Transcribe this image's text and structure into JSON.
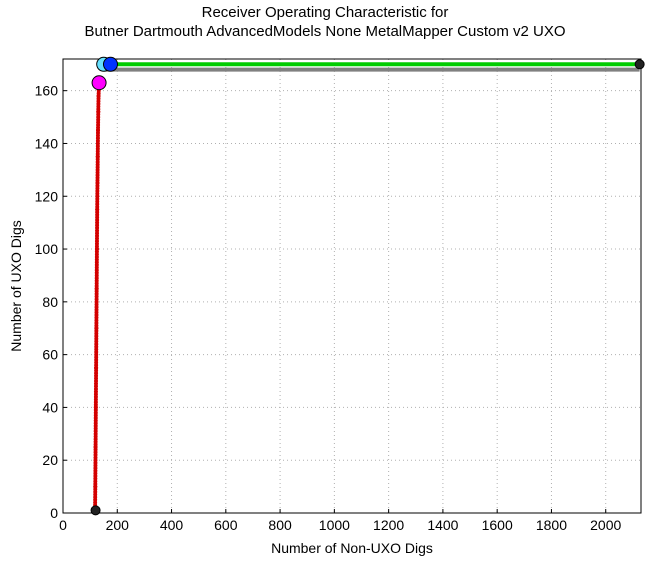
{
  "chart_data": {
    "type": "line",
    "title_lines": [
      "Receiver Operating Characteristic for",
      "Butner Dartmouth AdvancedModels None MetalMapper Custom v2 UXO"
    ],
    "xlabel": "Number of Non-UXO Digs",
    "ylabel": "Number of UXO Digs",
    "xlim": [
      0,
      2130
    ],
    "ylim": [
      0,
      172
    ],
    "xticks": [
      0,
      200,
      400,
      600,
      800,
      1000,
      1200,
      1400,
      1600,
      1800,
      2000
    ],
    "yticks": [
      0,
      20,
      40,
      60,
      80,
      100,
      120,
      140,
      160
    ],
    "grid": true,
    "series": [
      {
        "color": "#d40000",
        "marker": "dot",
        "points": [
          [
            118,
            0
          ],
          [
            119,
            10
          ],
          [
            120,
            25
          ],
          [
            121,
            40
          ],
          [
            122,
            55
          ],
          [
            123,
            70
          ],
          [
            124,
            85
          ],
          [
            125,
            100
          ],
          [
            126,
            115
          ],
          [
            127,
            125
          ],
          [
            128,
            135
          ],
          [
            129,
            145
          ],
          [
            130,
            152
          ],
          [
            131,
            158
          ],
          [
            133,
            163
          ]
        ]
      },
      {
        "color": "#00cc00",
        "marker": "none",
        "points": [
          [
            150,
            170
          ],
          [
            2125,
            170
          ]
        ]
      },
      {
        "color": "#808080",
        "marker": "none",
        "points": [
          [
            150,
            168
          ],
          [
            2125,
            168
          ]
        ]
      }
    ],
    "markers": [
      {
        "x": 120,
        "y": 1,
        "color": "#222222",
        "size": "small"
      },
      {
        "x": 133,
        "y": 163,
        "color": "#ff00ff",
        "size": "large"
      },
      {
        "x": 150,
        "y": 170,
        "color": "#66e0ff",
        "size": "large"
      },
      {
        "x": 175,
        "y": 170,
        "color": "#0033ff",
        "size": "large"
      },
      {
        "x": 2125,
        "y": 170,
        "color": "#222222",
        "size": "small"
      }
    ]
  }
}
